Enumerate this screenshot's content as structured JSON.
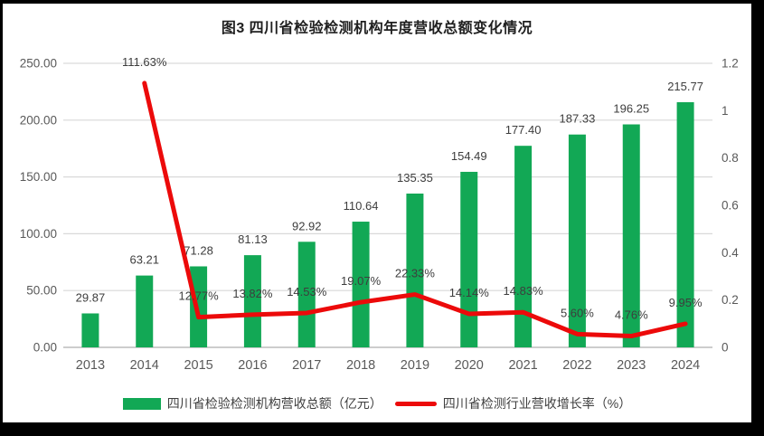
{
  "chart_data": {
    "type": "combo-bar-line",
    "title": "图3  四川省检验检测机构年度营收总额变化情况",
    "categories": [
      "2013",
      "2014",
      "2015",
      "2016",
      "2017",
      "2018",
      "2019",
      "2020",
      "2021",
      "2022",
      "2023",
      "2024"
    ],
    "series": [
      {
        "name": "四川省检验检测机构营收总额（亿元）",
        "type": "bar",
        "axis": "left",
        "color": "#12A855",
        "values": [
          29.87,
          63.21,
          71.28,
          81.13,
          92.92,
          110.64,
          135.35,
          154.49,
          177.4,
          187.33,
          196.25,
          215.77
        ],
        "labels": [
          "29.87",
          "63.21",
          "71.28",
          "81.13",
          "92.92",
          "110.64",
          "135.35",
          "154.49",
          "177.40",
          "187.33",
          "196.25",
          "215.77"
        ]
      },
      {
        "name": "四川省检测行业营收增长率（%）",
        "type": "line",
        "axis": "right",
        "color": "#EC0A0A",
        "values": [
          null,
          1.1163,
          0.1277,
          0.1382,
          0.1453,
          0.1907,
          0.2233,
          0.1414,
          0.1483,
          0.056,
          0.0476,
          0.0995
        ],
        "labels": [
          "",
          "111.63%",
          "12.77%",
          "13.82%",
          "14.53%",
          "19.07%",
          "22.33%",
          "14.14%",
          "14.83%",
          "5.60%",
          "4.76%",
          "9.95%"
        ]
      }
    ],
    "left_axis": {
      "ticks": [
        "0.00",
        "50.00",
        "100.00",
        "150.00",
        "200.00",
        "250.00"
      ],
      "min": 0,
      "max": 250
    },
    "right_axis": {
      "ticks": [
        "0",
        "0.2",
        "0.4",
        "0.6",
        "0.8",
        "1",
        "1.2"
      ],
      "min": 0,
      "max": 1.2
    },
    "grid": true,
    "legend_position": "bottom",
    "colors": {
      "grid": "#D9D9D9",
      "axis_line": "#BFBFBF",
      "axis_text": "#595959",
      "data_label": "#3D3D3D",
      "title": "#1F1F1F",
      "background": "#FFFFFF",
      "frame_border": "#000000"
    }
  }
}
